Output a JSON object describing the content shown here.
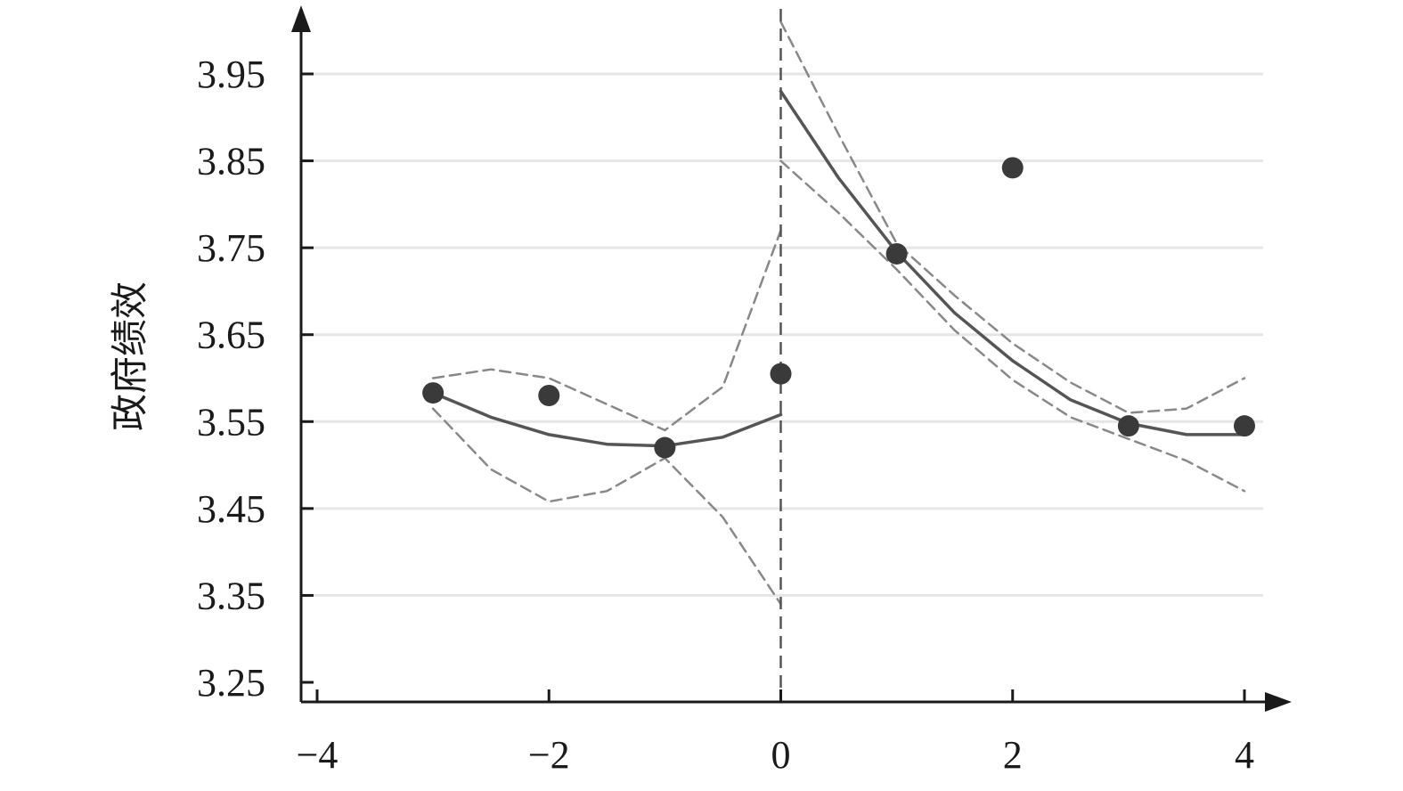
{
  "chart_data": {
    "type": "scatter",
    "title": "",
    "xlabel": "",
    "ylabel": "政府绩效",
    "xlim": [
      -4,
      4
    ],
    "ylim": [
      3.25,
      3.97
    ],
    "xticks": [
      -4,
      -2,
      0,
      2,
      4
    ],
    "xtick_labels": [
      "−4",
      "−2",
      "0",
      "2",
      "4"
    ],
    "yticks": [
      3.25,
      3.35,
      3.45,
      3.55,
      3.65,
      3.75,
      3.85,
      3.95
    ],
    "ytick_labels": [
      "3.25",
      "3.35",
      "3.45",
      "3.55",
      "3.65",
      "3.75",
      "3.85",
      "3.95"
    ],
    "grid": "horizontal",
    "cutoff": 0,
    "points": [
      {
        "x": -3,
        "y": 3.583
      },
      {
        "x": -2,
        "y": 3.58
      },
      {
        "x": -1,
        "y": 3.52
      },
      {
        "x": 0,
        "y": 3.605
      },
      {
        "x": 1,
        "y": 3.743
      },
      {
        "x": 2,
        "y": 3.842
      },
      {
        "x": 3,
        "y": 3.545
      },
      {
        "x": 4,
        "y": 3.545
      }
    ],
    "series": [
      {
        "style": "solid",
        "segment": "left",
        "x": [
          -3,
          -2.5,
          -2,
          -1.5,
          -1,
          -0.5,
          0
        ],
        "y": [
          3.583,
          3.555,
          3.535,
          3.524,
          3.522,
          3.532,
          3.558
        ]
      },
      {
        "style": "dashed",
        "segment": "left",
        "x": [
          -3,
          -2.5,
          -2,
          -1.5,
          -1,
          -0.5,
          0
        ],
        "y": [
          3.6,
          3.61,
          3.6,
          3.57,
          3.54,
          3.59,
          3.77
        ]
      },
      {
        "style": "dashed",
        "segment": "left",
        "x": [
          -3,
          -2.5,
          -2,
          -1.5,
          -1,
          -0.5,
          0
        ],
        "y": [
          3.565,
          3.495,
          3.458,
          3.47,
          3.508,
          3.44,
          3.34
        ]
      },
      {
        "style": "solid",
        "segment": "right",
        "x": [
          0,
          0.5,
          1,
          1.5,
          2,
          2.5,
          3,
          3.5,
          4
        ],
        "y": [
          3.93,
          3.83,
          3.745,
          3.675,
          3.62,
          3.575,
          3.548,
          3.535,
          3.535
        ]
      },
      {
        "style": "dashed",
        "segment": "right",
        "x": [
          0,
          0.5,
          1,
          1.5,
          2,
          2.5,
          3,
          3.5,
          4
        ],
        "y": [
          4.01,
          3.88,
          3.755,
          3.695,
          3.64,
          3.595,
          3.56,
          3.565,
          3.6
        ]
      },
      {
        "style": "dashed",
        "segment": "right",
        "x": [
          0,
          0.5,
          1,
          1.5,
          2,
          2.5,
          3,
          3.5,
          4
        ],
        "y": [
          3.85,
          3.79,
          3.725,
          3.655,
          3.598,
          3.555,
          3.53,
          3.505,
          3.47
        ]
      }
    ],
    "colors": {
      "axis": "#1a1a1a",
      "grid": "#e6e6e6",
      "point": "#3a3a3a",
      "fit": "#555555",
      "ci": "#888888",
      "cutoff": "#555555"
    }
  }
}
